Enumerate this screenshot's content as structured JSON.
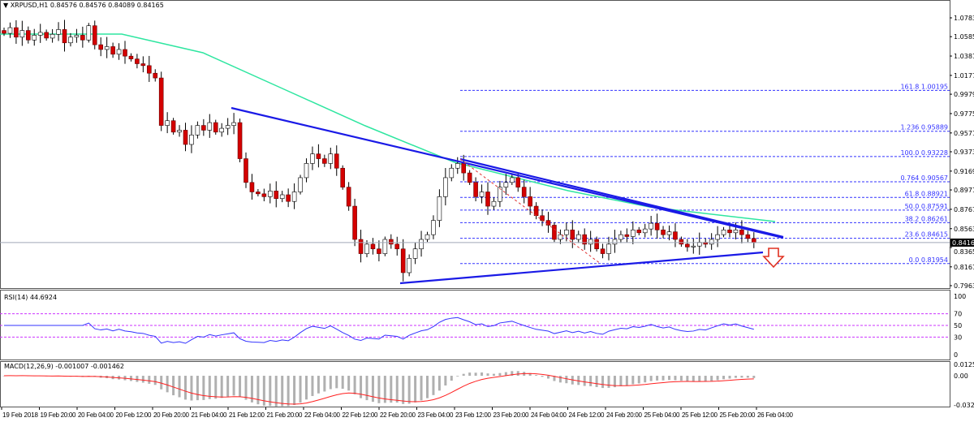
{
  "header": {
    "symbol_label": "▼ XRPUSD,H1  0.84576 0.84576 0.84089 0.84165"
  },
  "colors": {
    "bull": "#ffffff",
    "bear": "#d40000",
    "ma": "#2ee6a0",
    "trendline": "#1a1ae6",
    "fib": "#3333ff",
    "rsi": "#3333ff",
    "rsi_levels": "#cc33ff",
    "macd_hist": "#b0b0b0",
    "macd_signal": "#ff2020",
    "arrow": "#e03020"
  },
  "chart_data": {
    "type": "candlestick",
    "symbol": "XRPUSD",
    "timeframe": "H1",
    "last_price": "0.84165",
    "y_axis_ticks": [
      "1.07830",
      "1.05850",
      "1.03810",
      "1.01770",
      "0.99790",
      "0.97750",
      "0.95710",
      "0.93730",
      "0.91690",
      "0.89710",
      "0.87670",
      "0.85630",
      "0.83650",
      "0.81610",
      "0.79630"
    ],
    "ylim": [
      0.7963,
      1.0783
    ],
    "x_axis_ticks": [
      "19 Feb 2018",
      "19 Feb 20:00",
      "20 Feb 04:00",
      "20 Feb 12:00",
      "20 Feb 20:00",
      "21 Feb 04:00",
      "21 Feb 12:00",
      "21 Feb 20:00",
      "22 Feb 04:00",
      "22 Feb 12:00",
      "22 Feb 20:00",
      "23 Feb 04:00",
      "23 Feb 12:00",
      "23 Feb 20:00",
      "24 Feb 04:00",
      "24 Feb 12:00",
      "24 Feb 20:00",
      "25 Feb 04:00",
      "25 Feb 12:00",
      "25 Feb 20:00",
      "26 Feb 04:00"
    ],
    "closes": [
      1.062,
      1.068,
      1.058,
      1.065,
      1.055,
      1.06,
      1.063,
      1.057,
      1.061,
      1.066,
      1.052,
      1.058,
      1.06,
      1.055,
      1.07,
      1.05,
      1.045,
      1.048,
      1.04,
      1.045,
      1.038,
      1.035,
      1.03,
      1.028,
      1.02,
      1.015,
      0.965,
      0.97,
      0.958,
      0.96,
      0.945,
      0.955,
      0.965,
      0.96,
      0.968,
      0.958,
      0.962,
      0.965,
      0.968,
      0.93,
      0.905,
      0.895,
      0.893,
      0.89,
      0.896,
      0.888,
      0.892,
      0.885,
      0.895,
      0.91,
      0.925,
      0.935,
      0.93,
      0.925,
      0.935,
      0.92,
      0.9,
      0.88,
      0.845,
      0.83,
      0.84,
      0.835,
      0.83,
      0.845,
      0.84,
      0.835,
      0.81,
      0.825,
      0.835,
      0.845,
      0.85,
      0.865,
      0.89,
      0.91,
      0.92,
      0.925,
      0.915,
      0.905,
      0.89,
      0.895,
      0.88,
      0.885,
      0.9,
      0.905,
      0.91,
      0.9,
      0.89,
      0.88,
      0.87,
      0.865,
      0.86,
      0.845,
      0.85,
      0.855,
      0.845,
      0.85,
      0.84,
      0.845,
      0.835,
      0.83,
      0.84,
      0.845,
      0.85,
      0.848,
      0.855,
      0.852,
      0.856,
      0.862,
      0.855,
      0.85,
      0.853,
      0.845,
      0.84,
      0.837,
      0.838,
      0.842,
      0.84,
      0.845,
      0.85,
      0.855,
      0.852,
      0.855,
      0.85,
      0.846,
      0.8417
    ],
    "fibonacci": [
      {
        "level": "161.8",
        "price": "1.00195"
      },
      {
        "level": "1.236",
        "price": "0.95889"
      },
      {
        "level": "100.0",
        "price": "0.93228"
      },
      {
        "level": "0.764",
        "price": "0.90567"
      },
      {
        "level": "61.8",
        "price": "0.88921"
      },
      {
        "level": "50.0",
        "price": "0.87591"
      },
      {
        "level": "38.2",
        "price": "0.86261"
      },
      {
        "level": "23.6",
        "price": "0.84615"
      },
      {
        "level": "0.0",
        "price": "0.81954"
      }
    ],
    "rsi": {
      "label": "RSI(14) 44.6924",
      "ticks": [
        "100",
        "70",
        "50",
        "30",
        "0"
      ],
      "levels": [
        70,
        50,
        30
      ]
    },
    "macd": {
      "label": "MACD(12,26,9) -0.001007 -0.001462",
      "ticks": [
        "0.012505",
        "0.00",
        "-0.032015"
      ],
      "ylim": [
        -0.032015,
        0.012505
      ]
    }
  }
}
